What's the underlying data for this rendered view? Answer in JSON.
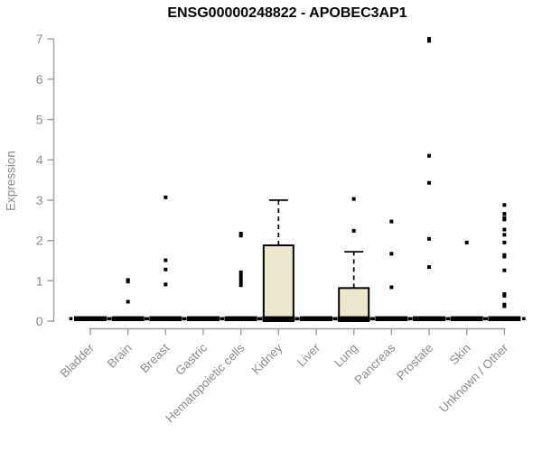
{
  "chart_data": {
    "type": "boxplot",
    "title": "ENSG00000248822 - APOBEC3AP1",
    "ylabel": "Expression",
    "xlabel": "",
    "ylim": [
      0,
      7
    ],
    "yticks": [
      0,
      1,
      2,
      3,
      4,
      5,
      6,
      7
    ],
    "grid": false,
    "legend": "none",
    "categories": [
      "Bladder",
      "Brain",
      "Breast",
      "Gastric",
      "Hematopoietic cells",
      "Kidney",
      "Liver",
      "Lung",
      "Pancreas",
      "Prostate",
      "Skin",
      "Unknown / Other"
    ],
    "boxes": [
      {
        "category": "Bladder",
        "whisker_low": 0,
        "q1": 0,
        "median": 0,
        "q3": 0,
        "whisker_high": 0,
        "outliers": []
      },
      {
        "category": "Brain",
        "whisker_low": 0,
        "q1": 0,
        "median": 0,
        "q3": 0,
        "whisker_high": 0,
        "outliers": [
          1.02,
          0.98,
          0.48
        ]
      },
      {
        "category": "Breast",
        "whisker_low": 0,
        "q1": 0,
        "median": 0,
        "q3": 0,
        "whisker_high": 0,
        "outliers": [
          3.07,
          1.51,
          1.28,
          0.91
        ]
      },
      {
        "category": "Gastric",
        "whisker_low": 0,
        "q1": 0,
        "median": 0,
        "q3": 0,
        "whisker_high": 0,
        "outliers": []
      },
      {
        "category": "Hematopoietic cells",
        "whisker_low": 0,
        "q1": 0,
        "median": 0,
        "q3": 0,
        "whisker_high": 0,
        "outliers": [
          2.17,
          2.12,
          1.21,
          1.13,
          1.05,
          0.97,
          0.89
        ]
      },
      {
        "category": "Kidney",
        "whisker_low": 0,
        "q1": 0,
        "median": 0,
        "q3": 1.88,
        "whisker_high": 3.0,
        "outliers": []
      },
      {
        "category": "Liver",
        "whisker_low": 0,
        "q1": 0,
        "median": 0,
        "q3": 0,
        "whisker_high": 0,
        "outliers": []
      },
      {
        "category": "Lung",
        "whisker_low": 0,
        "q1": 0,
        "median": 0,
        "q3": 0.82,
        "whisker_high": 1.72,
        "outliers": [
          3.03,
          2.24
        ]
      },
      {
        "category": "Pancreas",
        "whisker_low": 0,
        "q1": 0,
        "median": 0,
        "q3": 0,
        "whisker_high": 0,
        "outliers": [
          2.47,
          1.67,
          0.84
        ]
      },
      {
        "category": "Prostate",
        "whisker_low": 0,
        "q1": 0,
        "median": 0,
        "q3": 0,
        "whisker_high": 0,
        "outliers": [
          7.0,
          6.95,
          4.1,
          3.43,
          2.04,
          1.34
        ]
      },
      {
        "category": "Skin",
        "whisker_low": 0,
        "q1": 0,
        "median": 0,
        "q3": 0,
        "whisker_high": 0,
        "outliers": [
          1.95
        ]
      },
      {
        "category": "Unknown / Other",
        "whisker_low": 0,
        "q1": 0,
        "median": 0,
        "q3": 0,
        "whisker_high": 0,
        "outliers": [
          2.88,
          2.66,
          2.56,
          2.52,
          2.27,
          2.14,
          1.95,
          1.64,
          1.6,
          1.26,
          0.67,
          0.63,
          0.41,
          0.37
        ]
      }
    ],
    "colors": {
      "box_fill": "#ECE8CD",
      "box_stroke": "#000000",
      "median": "#000000",
      "point": "#000000",
      "axis_line": "#9d9d9d",
      "tick_label": "#8c8c8c",
      "title": "#000000"
    }
  }
}
